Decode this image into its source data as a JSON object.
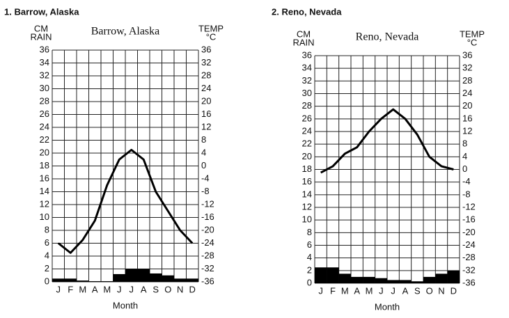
{
  "chart_data": [
    {
      "type": "climograph",
      "heading": "1. Barrow, Alaska",
      "title": "Barrow, Alaska",
      "y_label": [
        "CM",
        "RAIN"
      ],
      "y2_label": [
        "TEMP",
        "°C"
      ],
      "x_label": "Month",
      "categories": [
        "J",
        "F",
        "M",
        "A",
        "M",
        "J",
        "J",
        "A",
        "S",
        "O",
        "N",
        "D"
      ],
      "series": [
        {
          "type": "bar",
          "color": "#000000",
          "values": [
            0.5,
            0.5,
            0.2,
            0.1,
            0.1,
            1.2,
            2,
            2,
            1.3,
            1,
            0.5,
            0.5
          ]
        },
        {
          "type": "line",
          "axis": "y2",
          "color": "#000000",
          "values": [
            -24,
            -27,
            -23,
            -17,
            -6,
            2,
            5,
            2,
            -8,
            -14,
            -20,
            -24
          ]
        }
      ],
      "ylim": [
        0,
        36
      ],
      "yticks": [
        0,
        2,
        4,
        6,
        8,
        10,
        12,
        14,
        16,
        18,
        20,
        22,
        24,
        26,
        28,
        30,
        32,
        34,
        36
      ],
      "y2lim": [
        -36,
        36
      ],
      "y2ticks": [
        -36,
        -32,
        -28,
        -24,
        -20,
        -16,
        -12,
        -8,
        -4,
        0,
        4,
        8,
        12,
        16,
        20,
        24,
        28,
        32,
        36
      ],
      "grid": true
    },
    {
      "type": "climograph",
      "heading": "2. Reno, Nevada",
      "title": "Reno, Nevada",
      "y_label": [
        "CM",
        "RAIN"
      ],
      "y2_label": [
        "TEMP",
        "°C"
      ],
      "x_label": "Month",
      "categories": [
        "J",
        "F",
        "M",
        "A",
        "M",
        "J",
        "J",
        "A",
        "S",
        "O",
        "N",
        "D"
      ],
      "series": [
        {
          "type": "bar",
          "color": "#000000",
          "values": [
            2.5,
            2.5,
            1.5,
            1,
            1,
            0.8,
            0.5,
            0.5,
            0.3,
            1,
            1.5,
            2
          ]
        },
        {
          "type": "line",
          "axis": "y2",
          "color": "#000000",
          "values": [
            -1,
            1,
            5,
            7,
            12,
            16,
            19,
            16,
            11,
            4,
            1,
            0
          ]
        }
      ],
      "ylim": [
        0,
        36
      ],
      "yticks": [
        0,
        2,
        4,
        6,
        8,
        10,
        12,
        14,
        16,
        18,
        20,
        22,
        24,
        26,
        28,
        30,
        32,
        34,
        36
      ],
      "y2lim": [
        -36,
        36
      ],
      "y2ticks": [
        -36,
        -32,
        -28,
        -24,
        -20,
        -16,
        -12,
        -8,
        -4,
        0,
        4,
        8,
        12,
        16,
        20,
        24,
        28,
        32,
        36
      ],
      "grid": true
    }
  ]
}
